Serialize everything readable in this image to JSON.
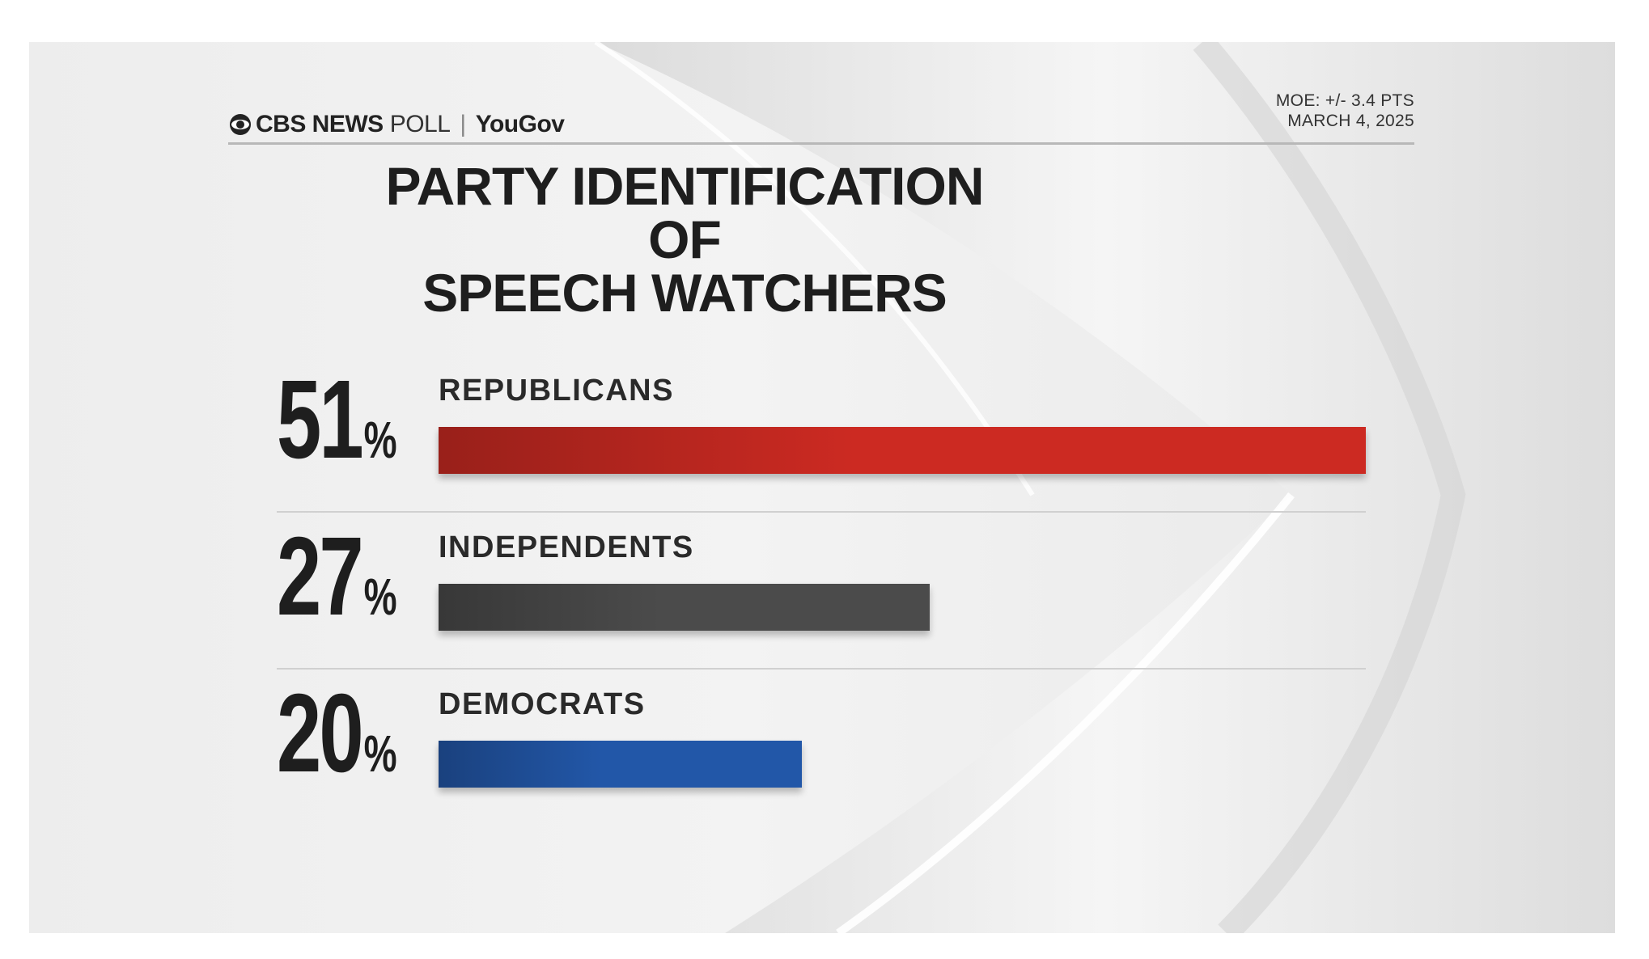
{
  "header": {
    "brand": "CBS NEWS",
    "poll": "POLL",
    "partner": "YouGov",
    "moe": "MOE: +/- 3.4 PTS",
    "date": "MARCH 4, 2025"
  },
  "chart_data": {
    "type": "bar",
    "orientation": "horizontal",
    "title_lines": [
      "PARTY IDENTIFICATION OF",
      "SPEECH WATCHERS"
    ],
    "categories": [
      "REPUBLICANS",
      "INDEPENDENTS",
      "DEMOCRATS"
    ],
    "values": [
      51,
      27,
      20
    ],
    "value_labels": [
      "51",
      "27",
      "20"
    ],
    "unit": "%",
    "colors": [
      "#cc2a22",
      "#4b4b4b",
      "#2257a8"
    ],
    "xlim": [
      0,
      51
    ]
  }
}
